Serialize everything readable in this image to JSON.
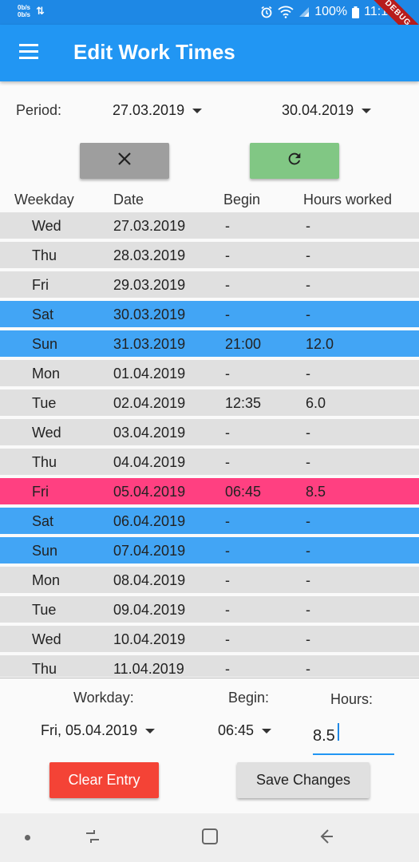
{
  "status_bar": {
    "net_up": "0b/s",
    "net_down": "0b/s",
    "battery": "100%",
    "time": "11:19",
    "debug_banner": "DEBUG"
  },
  "app_bar": {
    "title": "Edit Work Times",
    "menu_icon": "menu-icon"
  },
  "period": {
    "label": "Period:",
    "start": "27.03.2019",
    "end": "30.04.2019"
  },
  "actions": {
    "cancel_icon": "close-icon",
    "refresh_icon": "refresh-icon"
  },
  "table": {
    "headers": [
      "Weekday",
      "Date",
      "Begin",
      "Hours worked"
    ],
    "rows": [
      {
        "weekday": "Wed",
        "date": "27.03.2019",
        "begin": "-",
        "hours": "-",
        "type": "weekday"
      },
      {
        "weekday": "Thu",
        "date": "28.03.2019",
        "begin": "-",
        "hours": "-",
        "type": "weekday"
      },
      {
        "weekday": "Fri",
        "date": "29.03.2019",
        "begin": "-",
        "hours": "-",
        "type": "weekday"
      },
      {
        "weekday": "Sat",
        "date": "30.03.2019",
        "begin": "-",
        "hours": "-",
        "type": "weekend"
      },
      {
        "weekday": "Sun",
        "date": "31.03.2019",
        "begin": "21:00",
        "hours": "12.0",
        "type": "weekend"
      },
      {
        "weekday": "Mon",
        "date": "01.04.2019",
        "begin": "-",
        "hours": "-",
        "type": "weekday"
      },
      {
        "weekday": "Tue",
        "date": "02.04.2019",
        "begin": "12:35",
        "hours": "6.0",
        "type": "weekday"
      },
      {
        "weekday": "Wed",
        "date": "03.04.2019",
        "begin": "-",
        "hours": "-",
        "type": "weekday"
      },
      {
        "weekday": "Thu",
        "date": "04.04.2019",
        "begin": "-",
        "hours": "-",
        "type": "weekday"
      },
      {
        "weekday": "Fri",
        "date": "05.04.2019",
        "begin": "06:45",
        "hours": "8.5",
        "type": "selected"
      },
      {
        "weekday": "Sat",
        "date": "06.04.2019",
        "begin": "-",
        "hours": "-",
        "type": "weekend"
      },
      {
        "weekday": "Sun",
        "date": "07.04.2019",
        "begin": "-",
        "hours": "-",
        "type": "weekend"
      },
      {
        "weekday": "Mon",
        "date": "08.04.2019",
        "begin": "-",
        "hours": "-",
        "type": "weekday"
      },
      {
        "weekday": "Tue",
        "date": "09.04.2019",
        "begin": "-",
        "hours": "-",
        "type": "weekday"
      },
      {
        "weekday": "Wed",
        "date": "10.04.2019",
        "begin": "-",
        "hours": "-",
        "type": "weekday"
      },
      {
        "weekday": "Thu",
        "date": "11.04.2019",
        "begin": "-",
        "hours": "-",
        "type": "weekday"
      }
    ]
  },
  "editor": {
    "workday_label": "Workday:",
    "workday_value": "Fri, 05.04.2019",
    "begin_label": "Begin:",
    "begin_value": "06:45",
    "hours_label": "Hours:",
    "hours_value": "8.5",
    "clear_button": "Clear Entry",
    "save_button": "Save Changes"
  },
  "colors": {
    "app_bar": "#2196f3",
    "status_bar": "#1e88e5",
    "weekday_row": "#e0e0e0",
    "weekend_row": "#42a5f5",
    "selected_row": "#ff4081",
    "cancel_button": "#9e9e9e",
    "refresh_button": "#81c784",
    "clear_button": "#f44336",
    "save_button": "#e0e0e0"
  }
}
